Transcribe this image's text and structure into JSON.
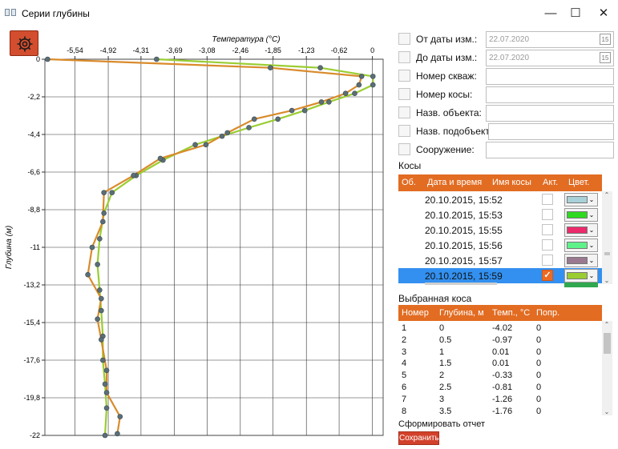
{
  "window": {
    "title": "Серии глубины",
    "minimize_label": "—",
    "maximize_label": "☐",
    "close_label": "✕"
  },
  "chart_data": {
    "type": "line",
    "title": "",
    "xlabel": "Температура (°C)",
    "ylabel": "Глубина (м)",
    "x_tick_labels": [
      "-5,54",
      "-4,92",
      "-4,31",
      "-3,69",
      "-3,08",
      "-2,46",
      "-1,85",
      "-1,23",
      "-0,62",
      "0"
    ],
    "x_ticks": [
      -5.54,
      -4.92,
      -4.31,
      -3.69,
      -3.08,
      -2.46,
      -1.85,
      -1.23,
      -0.62,
      0
    ],
    "y_tick_labels": [
      "0",
      "-2,2",
      "-4,4",
      "-6,6",
      "-8,8",
      "-11",
      "-13,2",
      "-15,4",
      "-17,6",
      "-19,8",
      "-22"
    ],
    "y_ticks": [
      0,
      -2.2,
      -4.4,
      -6.6,
      -8.8,
      -11,
      -13.2,
      -15.4,
      -17.6,
      -19.8,
      -22
    ],
    "xlim": [
      -6.1,
      0.2
    ],
    "ylim": [
      -22,
      0
    ],
    "x_axis_position": "top",
    "grid": true,
    "legend": "none",
    "series": [
      {
        "color": "#9acd32",
        "marker_color": "#5b6e76",
        "points": [
          [
            -4.02,
            0
          ],
          [
            -0.97,
            -0.5
          ],
          [
            0.01,
            -1
          ],
          [
            0.01,
            -1.5
          ],
          [
            -0.33,
            -2
          ],
          [
            -0.81,
            -2.5
          ],
          [
            -1.26,
            -3
          ],
          [
            -1.76,
            -3.5
          ],
          [
            -2.3,
            -4
          ],
          [
            -2.8,
            -4.5
          ],
          [
            -3.3,
            -5
          ],
          [
            -3.9,
            -5.9
          ],
          [
            -4.4,
            -6.8
          ],
          [
            -4.85,
            -7.8
          ],
          [
            -5.0,
            -9
          ],
          [
            -5.08,
            -10.5
          ],
          [
            -5.12,
            -12
          ],
          [
            -5.08,
            -13.5
          ],
          [
            -5.05,
            -14.7
          ],
          [
            -5.02,
            -16.2
          ],
          [
            -5.02,
            -17.6
          ],
          [
            -4.98,
            -19
          ],
          [
            -4.95,
            -20.4
          ],
          [
            -4.98,
            -22
          ]
        ]
      },
      {
        "color": "#d98b2b",
        "marker_color": "#5b6e76",
        "points": [
          [
            -6.05,
            0
          ],
          [
            -1.9,
            -0.5
          ],
          [
            -0.2,
            -1
          ],
          [
            -0.25,
            -1.5
          ],
          [
            -0.5,
            -2
          ],
          [
            -0.95,
            -2.5
          ],
          [
            -1.5,
            -3
          ],
          [
            -2.2,
            -3.5
          ],
          [
            -2.7,
            -4.3
          ],
          [
            -3.1,
            -5
          ],
          [
            -3.95,
            -5.8
          ],
          [
            -4.45,
            -6.8
          ],
          [
            -5.0,
            -7.8
          ],
          [
            -5.02,
            -9.5
          ],
          [
            -5.22,
            -11
          ],
          [
            -5.3,
            -12.6
          ],
          [
            -5.05,
            -14
          ],
          [
            -5.12,
            -15.2
          ],
          [
            -5.05,
            -16.4
          ],
          [
            -4.95,
            -18.2
          ],
          [
            -4.95,
            -19.5
          ],
          [
            -4.7,
            -20.9
          ],
          [
            -4.75,
            -21.9
          ]
        ]
      }
    ]
  },
  "filters": {
    "from_date": {
      "label": "От даты изм.:",
      "value": "22.07.2020"
    },
    "to_date": {
      "label": "До даты изм.:",
      "value": "22.07.2020"
    },
    "well_number": {
      "label": "Номер скваж:",
      "value": ""
    },
    "string_number": {
      "label": "Номер косы:",
      "value": ""
    },
    "object_name": {
      "label": "Назв. объекта:",
      "value": ""
    },
    "subobject_name": {
      "label": "Назв. подобъекта:",
      "value": ""
    },
    "structure": {
      "label": "Сооружение:",
      "value": ""
    },
    "calendar_label": "15"
  },
  "kosy": {
    "title": "Косы",
    "headers": [
      "Об.",
      "Дата и время",
      "Имя косы",
      "Акт.",
      "Цвет."
    ],
    "rows": [
      {
        "datetime": "20.10.2015, 15:52",
        "active": false,
        "color": "#a9d1d8",
        "selected": false
      },
      {
        "datetime": "20.10.2015, 15:53",
        "active": false,
        "color": "#2fd91f",
        "selected": false
      },
      {
        "datetime": "20.10.2015, 15:55",
        "active": false,
        "color": "#ec2a6b",
        "selected": false
      },
      {
        "datetime": "20.10.2015, 15:56",
        "active": false,
        "color": "#5ef28a",
        "selected": false
      },
      {
        "datetime": "20.10.2015, 15:57",
        "active": false,
        "color": "#9a7890",
        "selected": false
      },
      {
        "datetime": "20.10.2015, 15:59",
        "active": true,
        "color": "#9acd32",
        "selected": true
      }
    ],
    "check_mark": "✓",
    "dropdown_arrow": "⌄"
  },
  "selected_kosa": {
    "title": "Выбранная коса",
    "headers": [
      "Номер",
      "Глубина, м",
      "Темп., °C",
      "Попр."
    ],
    "rows": [
      [
        "1",
        "0",
        "-4.02",
        "0"
      ],
      [
        "2",
        "0.5",
        "-0.97",
        "0"
      ],
      [
        "3",
        "1",
        "0.01",
        "0"
      ],
      [
        "4",
        "1.5",
        "0.01",
        "0"
      ],
      [
        "5",
        "2",
        "-0.33",
        "0"
      ],
      [
        "6",
        "2.5",
        "-0.81",
        "0"
      ],
      [
        "7",
        "3",
        "-1.26",
        "0"
      ],
      [
        "8",
        "3.5",
        "-1.76",
        "0"
      ]
    ]
  },
  "report": {
    "title": "Сформировать отчет",
    "save_label": "Сохранить"
  },
  "icons": {
    "settings": "gear-icon",
    "window": "window-icon",
    "calendar": "calendar-icon"
  },
  "colors": {
    "accent": "#e26c22",
    "settings_button": "#d24e2e",
    "save_button": "#d2412b",
    "selection": "#3390f0"
  }
}
